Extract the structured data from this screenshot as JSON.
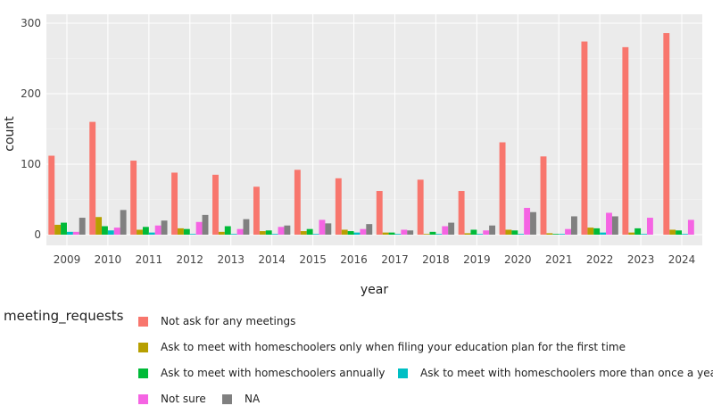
{
  "chart_data": {
    "type": "bar",
    "xlabel": "year",
    "ylabel": "count",
    "ylim": [
      -14,
      300
    ],
    "yticks": [
      0,
      100,
      200,
      300
    ],
    "grid": true,
    "legend_title": "meeting_requests",
    "legend_placement": "bottom",
    "categories": [
      "2009",
      "2010",
      "2011",
      "2012",
      "2013",
      "2014",
      "2015",
      "2016",
      "2017",
      "2018",
      "2019",
      "2020",
      "2021",
      "2022",
      "2023",
      "2024"
    ],
    "series": [
      {
        "name": "Not ask for any meetings",
        "color": "#f8766d",
        "values": [
          112,
          160,
          105,
          88,
          85,
          68,
          92,
          80,
          62,
          78,
          62,
          131,
          111,
          274,
          266,
          286
        ]
      },
      {
        "name": "Ask to meet with homeschoolers only when filing your education plan for the first time",
        "color": "#b79f00",
        "values": [
          14,
          25,
          7,
          9,
          4,
          5,
          5,
          7,
          3,
          1,
          2,
          7,
          2,
          10,
          3,
          7
        ]
      },
      {
        "name": "Ask to meet with homeschoolers annually",
        "color": "#00ba38",
        "values": [
          17,
          12,
          11,
          8,
          12,
          6,
          8,
          5,
          3,
          4,
          7,
          6,
          1,
          9,
          9,
          6
        ]
      },
      {
        "name": "Ask to meet with homeschoolers more than once a yea",
        "color": "#00bfc4",
        "values": [
          4,
          6,
          3,
          1,
          1,
          1,
          1,
          3,
          1,
          1,
          1,
          1,
          1,
          3,
          1,
          1
        ]
      },
      {
        "name": "Not sure",
        "color": "#f564e3",
        "values": [
          4,
          10,
          13,
          18,
          8,
          11,
          21,
          8,
          7,
          12,
          6,
          38,
          8,
          31,
          24,
          21
        ]
      },
      {
        "name": "NA",
        "color": "#808080",
        "values": [
          24,
          35,
          20,
          28,
          22,
          13,
          16,
          15,
          6,
          17,
          13,
          32,
          26,
          26,
          0,
          0
        ]
      }
    ]
  }
}
